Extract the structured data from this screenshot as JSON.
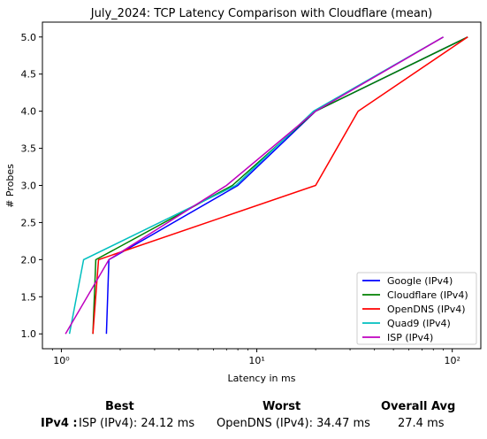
{
  "chart_data": {
    "type": "line",
    "title": "July_2024: TCP Latency Comparison with Cloudflare (mean)",
    "xlabel": "Latency in ms",
    "ylabel": "# Probes",
    "xscale": "log",
    "xlim": [
      0.8,
      140
    ],
    "ylim": [
      0.8,
      5.2
    ],
    "x_ticks": [
      {
        "value": 1,
        "label": "10⁰"
      },
      {
        "value": 10,
        "label": "10¹"
      },
      {
        "value": 100,
        "label": "10²"
      }
    ],
    "y_ticks": [
      1.0,
      1.5,
      2.0,
      2.5,
      3.0,
      3.5,
      4.0,
      4.5,
      5.0
    ],
    "y_tick_labels": [
      "1.0",
      "1.5",
      "2.0",
      "2.5",
      "3.0",
      "3.5",
      "4.0",
      "4.5",
      "5.0"
    ],
    "legend_position": "lower-right",
    "grid": false,
    "series": [
      {
        "name": "Google (IPv4)",
        "color": "#0000ff",
        "x": [
          1.7,
          1.75,
          8,
          20,
          120
        ],
        "y": [
          1,
          2,
          3,
          4,
          5
        ]
      },
      {
        "name": "Cloudflare (IPv4)",
        "color": "#008000",
        "x": [
          1.45,
          1.5,
          7.5,
          20,
          120
        ],
        "y": [
          1,
          2,
          3,
          4,
          5
        ]
      },
      {
        "name": "OpenDNS (IPv4)",
        "color": "#ff0000",
        "x": [
          1.45,
          1.55,
          20,
          33,
          120
        ],
        "y": [
          1,
          2,
          3,
          4,
          5
        ]
      },
      {
        "name": "Quad9 (IPv4)",
        "color": "#00bfbf",
        "x": [
          1.1,
          1.3,
          7.8,
          19.5,
          90
        ],
        "y": [
          1,
          2,
          3,
          4,
          5
        ]
      },
      {
        "name": "ISP (IPv4)",
        "color": "#bf00bf",
        "x": [
          1.05,
          1.75,
          7,
          20,
          90
        ],
        "y": [
          1,
          2,
          3,
          4,
          5
        ]
      }
    ]
  },
  "summary": {
    "row_label": "IPv4 :",
    "best": {
      "header": "Best",
      "value": "ISP (IPv4): 24.12 ms"
    },
    "worst": {
      "header": "Worst",
      "value": "OpenDNS (IPv4): 34.47 ms"
    },
    "overall": {
      "header": "Overall Avg",
      "value": "27.4 ms"
    }
  }
}
